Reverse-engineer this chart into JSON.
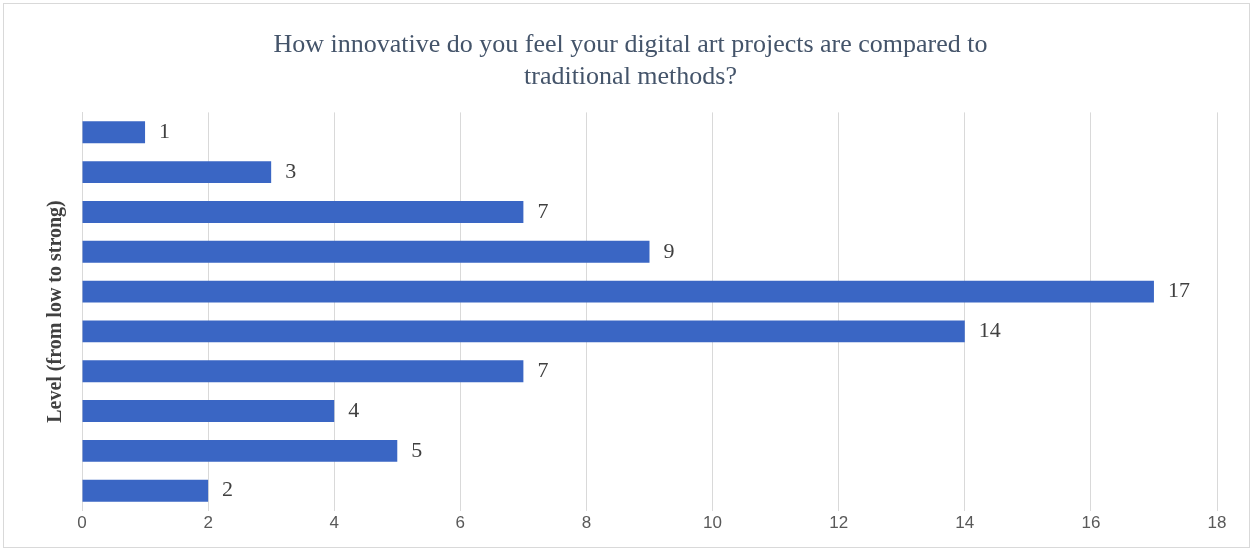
{
  "chart_data": {
    "type": "bar",
    "orientation": "horizontal",
    "title": "How innovative do you feel your digital art projects are compared to traditional methods?",
    "ylabel": "Level (from low to strong)",
    "categories": [
      null,
      null,
      null,
      null,
      null,
      null,
      null,
      null,
      null,
      null
    ],
    "values": [
      1,
      3,
      7,
      9,
      17,
      14,
      7,
      4,
      5,
      2
    ],
    "color": "#3a66c4",
    "xlim": [
      0,
      18
    ],
    "xticks": [
      0,
      2,
      4,
      6,
      8,
      10,
      12,
      14,
      16,
      18
    ],
    "grid": "x",
    "legend": false,
    "data_labels": true
  }
}
